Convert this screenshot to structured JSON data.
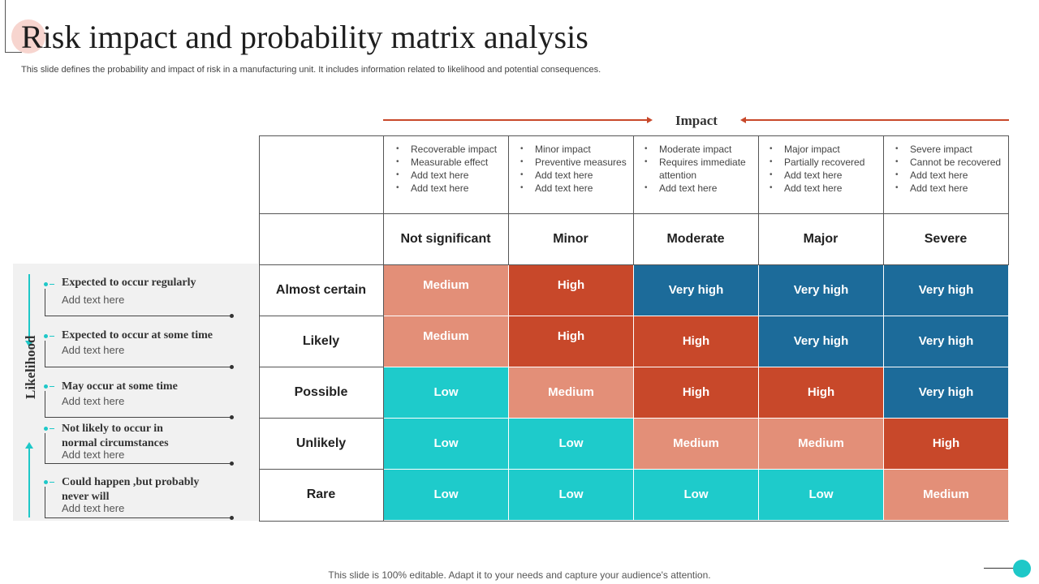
{
  "title": "Risk impact and probability matrix analysis",
  "subtitle": "This slide defines the probability and impact of risk in a manufacturing unit. It includes information related to likelihood and potential consequences.",
  "impact_label": "Impact",
  "likelihood_label": "Likelihood",
  "impact_descriptions": [
    [
      "Recoverable impact",
      "Measurable effect",
      "Add text here",
      "Add text here"
    ],
    [
      "Minor impact",
      "Preventive measures",
      "Add text here",
      "Add text here"
    ],
    [
      "Moderate impact",
      "Requires immediate attention",
      "Add text here"
    ],
    [
      "Major impact",
      "Partially recovered",
      "Add text here",
      "Add text here"
    ],
    [
      "Severe  impact",
      "Cannot be recovered",
      "Add text here",
      "Add text here"
    ]
  ],
  "columns": [
    "Not significant",
    "Minor",
    "Moderate",
    "Major",
    "Severe"
  ],
  "rows": [
    "Almost certain",
    "Likely",
    "Possible",
    "Unlikely",
    "Rare"
  ],
  "matrix": [
    [
      "Medium",
      "High",
      "Very high",
      "Very high",
      "Very high"
    ],
    [
      "Medium",
      "High",
      "High",
      "Very high",
      "Very high"
    ],
    [
      "Low",
      "Medium",
      "High",
      "High",
      "Very high"
    ],
    [
      "Low",
      "Low",
      "Medium",
      "Medium",
      "High"
    ],
    [
      "Low",
      "Low",
      "Low",
      "Low",
      "Medium"
    ]
  ],
  "colors": {
    "Low": "#1ecbcb",
    "Medium": "#e38f78",
    "High": "#c8482a",
    "Very high": "#1c6b9a"
  },
  "likelihood_items": [
    {
      "title": "Expected to occur regularly",
      "sub": "Add text here"
    },
    {
      "title": "Expected to occur at some time",
      "sub": "Add text here"
    },
    {
      "title": "May occur at some time",
      "sub": "Add text here"
    },
    {
      "title": "Not likely to occur in normal circumstances",
      "sub": "Add text here"
    },
    {
      "title": "Could happen ,but probably never will",
      "sub": "Add text here"
    }
  ],
  "footer": "This slide is 100% editable. Adapt it to your needs and capture your audience's attention."
}
